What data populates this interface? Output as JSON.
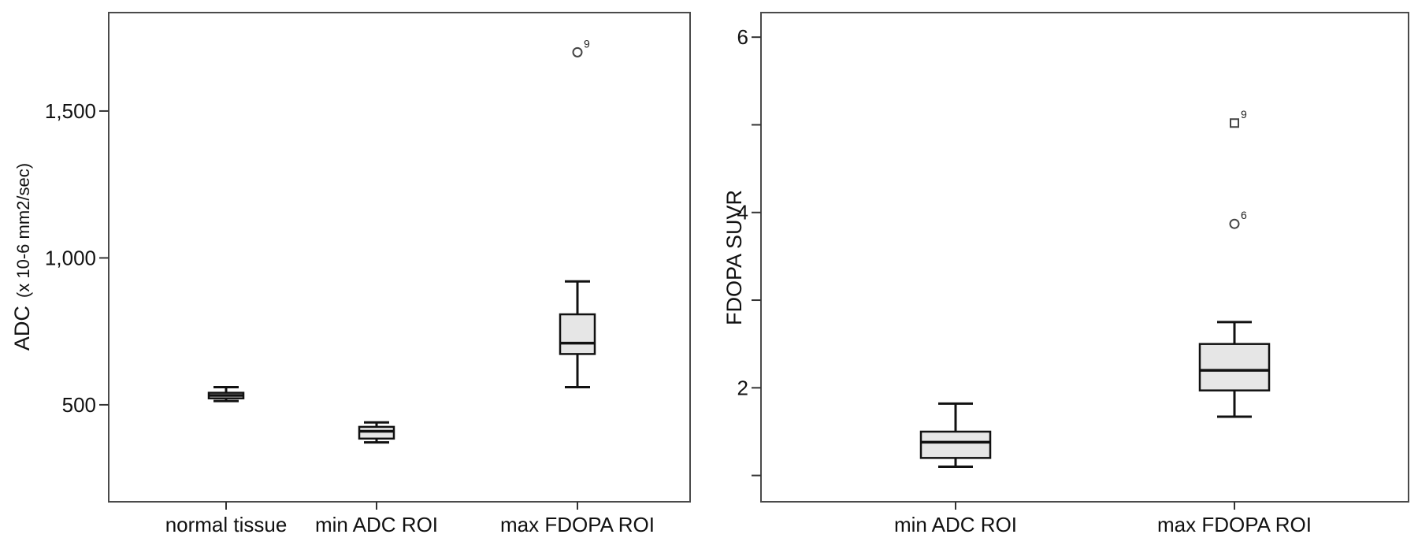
{
  "chart_data": [
    {
      "type": "box",
      "ylabel": "ADC",
      "ylabel_unit": "(x 10-6 mm2/sec)",
      "ylim": [
        170,
        1835
      ],
      "yticks": [
        500,
        1000,
        1500
      ],
      "ytick_labels": [
        "500",
        "1,000",
        "1,500"
      ],
      "categories": [
        "normal tissue",
        "min ADC ROI",
        "max FDOPA ROI"
      ],
      "boxes": [
        {
          "category": "normal tissue",
          "whisker_low": 513,
          "q1": 522,
          "median": 532,
          "q3": 541,
          "whisker_high": 560,
          "outliers": []
        },
        {
          "category": "min ADC ROI",
          "whisker_low": 372,
          "q1": 385,
          "median": 410,
          "q3": 425,
          "whisker_high": 440,
          "outliers": []
        },
        {
          "category": "max FDOPA ROI",
          "whisker_low": 560,
          "q1": 673,
          "median": 710,
          "q3": 808,
          "whisker_high": 920,
          "outliers": [
            {
              "value": 1700,
              "label": "9",
              "marker": "circle"
            }
          ]
        }
      ]
    },
    {
      "type": "box",
      "ylabel": "FDOPA SUVR",
      "ylim": [
        0.7,
        6.28
      ],
      "yticks": [
        1,
        2,
        3,
        4,
        5,
        6
      ],
      "ytick_labels": [
        "",
        "2",
        "",
        "4",
        "",
        "6"
      ],
      "categories": [
        "min ADC ROI",
        "max FDOPA ROI"
      ],
      "boxes": [
        {
          "category": "min ADC ROI",
          "whisker_low": 1.1,
          "q1": 1.2,
          "median": 1.38,
          "q3": 1.5,
          "whisker_high": 1.82,
          "outliers": []
        },
        {
          "category": "max FDOPA ROI",
          "whisker_low": 1.67,
          "q1": 1.97,
          "median": 2.2,
          "q3": 2.5,
          "whisker_high": 2.75,
          "outliers": [
            {
              "value": 5.02,
              "label": "9",
              "marker": "square"
            },
            {
              "value": 3.87,
              "label": "6",
              "marker": "circle"
            }
          ]
        }
      ]
    }
  ]
}
